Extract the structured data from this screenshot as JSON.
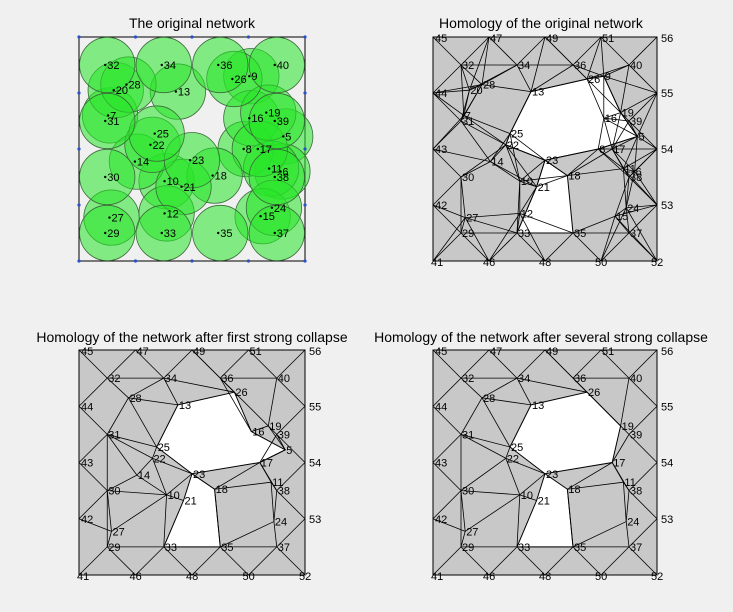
{
  "panels": [
    {
      "id": "p1",
      "title": "The original network"
    },
    {
      "id": "p2",
      "title": "Homology of the original network"
    },
    {
      "id": "p3",
      "title": "Homology of the network after first strong collapse"
    },
    {
      "id": "p4",
      "title": "Homology of the network after several strong collapse"
    }
  ],
  "colors": {
    "disk": "#33e633",
    "face": "#c8c8c8",
    "hole": "#ffffff",
    "background": "#f0f0f0"
  },
  "nodes": [
    {
      "id": "5",
      "x": 7.3,
      "y": 4.45
    },
    {
      "id": "6",
      "x": 7.2,
      "y": 3.2
    },
    {
      "id": "7",
      "x": 1.1,
      "y": 5.2
    },
    {
      "id": "8",
      "x": 5.9,
      "y": 4.0
    },
    {
      "id": "9",
      "x": 6.1,
      "y": 6.6
    },
    {
      "id": "10",
      "x": 3.1,
      "y": 2.85
    },
    {
      "id": "11",
      "x": 6.8,
      "y": 3.3
    },
    {
      "id": "12",
      "x": 3.1,
      "y": 1.7
    },
    {
      "id": "13",
      "x": 3.5,
      "y": 6.05
    },
    {
      "id": "14",
      "x": 2.05,
      "y": 3.55
    },
    {
      "id": "15",
      "x": 6.5,
      "y": 1.6
    },
    {
      "id": "16",
      "x": 6.1,
      "y": 5.1
    },
    {
      "id": "17",
      "x": 6.4,
      "y": 4.0
    },
    {
      "id": "18",
      "x": 4.8,
      "y": 3.05
    },
    {
      "id": "19",
      "x": 6.7,
      "y": 5.3
    },
    {
      "id": "20",
      "x": 1.3,
      "y": 6.1
    },
    {
      "id": "21",
      "x": 3.7,
      "y": 2.65
    },
    {
      "id": "22",
      "x": 2.6,
      "y": 4.15
    },
    {
      "id": "23",
      "x": 4.0,
      "y": 3.6
    },
    {
      "id": "24",
      "x": 6.9,
      "y": 1.9
    },
    {
      "id": "25",
      "x": 2.75,
      "y": 4.55
    },
    {
      "id": "26",
      "x": 5.5,
      "y": 6.5
    },
    {
      "id": "27",
      "x": 1.15,
      "y": 1.55
    },
    {
      "id": "28",
      "x": 1.75,
      "y": 6.3
    },
    {
      "id": "29",
      "x": 1.0,
      "y": 1.0
    },
    {
      "id": "30",
      "x": 1.0,
      "y": 3.0
    },
    {
      "id": "31",
      "x": 1.0,
      "y": 5.0
    },
    {
      "id": "32",
      "x": 1.0,
      "y": 7.0
    },
    {
      "id": "33",
      "x": 3.0,
      "y": 1.0
    },
    {
      "id": "34",
      "x": 3.0,
      "y": 7.0
    },
    {
      "id": "35",
      "x": 5.0,
      "y": 1.0
    },
    {
      "id": "36",
      "x": 5.0,
      "y": 7.0
    },
    {
      "id": "37",
      "x": 7.0,
      "y": 1.0
    },
    {
      "id": "38",
      "x": 7.0,
      "y": 3.0
    },
    {
      "id": "39",
      "x": 7.0,
      "y": 5.0
    },
    {
      "id": "40",
      "x": 7.0,
      "y": 7.0
    },
    {
      "id": "41",
      "x": 0.0,
      "y": 0.0
    },
    {
      "id": "42",
      "x": 0.0,
      "y": 2.0
    },
    {
      "id": "43",
      "x": 0.0,
      "y": 4.0
    },
    {
      "id": "44",
      "x": 0.0,
      "y": 6.0
    },
    {
      "id": "45",
      "x": 0.0,
      "y": 8.0
    },
    {
      "id": "46",
      "x": 2.0,
      "y": 0.0
    },
    {
      "id": "47",
      "x": 2.0,
      "y": 8.0
    },
    {
      "id": "48",
      "x": 4.0,
      "y": 0.0
    },
    {
      "id": "49",
      "x": 4.0,
      "y": 8.0
    },
    {
      "id": "50",
      "x": 6.0,
      "y": 0.0
    },
    {
      "id": "51",
      "x": 6.0,
      "y": 8.0
    },
    {
      "id": "52",
      "x": 8.0,
      "y": 0.0
    },
    {
      "id": "53",
      "x": 8.0,
      "y": 2.0
    },
    {
      "id": "54",
      "x": 8.0,
      "y": 4.0
    },
    {
      "id": "55",
      "x": 8.0,
      "y": 6.0
    },
    {
      "id": "56",
      "x": 8.0,
      "y": 8.0
    }
  ],
  "grid_sides": {
    "top": [
      "45",
      "47",
      "49",
      "51",
      "56"
    ],
    "right": [
      "56",
      "55",
      "54",
      "53",
      "52"
    ],
    "bottom": [
      "41",
      "46",
      "48",
      "50",
      "52"
    ],
    "left": [
      "45",
      "44",
      "43",
      "42",
      "41"
    ]
  },
  "panel_labels": {
    "p2": [
      "5",
      "6",
      "7",
      "8",
      "9",
      "10",
      "11",
      "12",
      "13",
      "14",
      "15",
      "16",
      "17",
      "18",
      "19",
      "20",
      "21",
      "22",
      "23",
      "24",
      "25",
      "26",
      "27",
      "28",
      "29",
      "30",
      "31",
      "32",
      "33",
      "34",
      "35",
      "36",
      "37",
      "38",
      "39",
      "40",
      "41",
      "42",
      "43",
      "44",
      "45",
      "46",
      "47",
      "48",
      "49",
      "50",
      "51",
      "52",
      "53",
      "54",
      "55",
      "56"
    ],
    "p3": [
      "5",
      "10",
      "11",
      "13",
      "14",
      "16",
      "17",
      "18",
      "19",
      "21",
      "22",
      "23",
      "24",
      "25",
      "26",
      "27",
      "28",
      "29",
      "30",
      "31",
      "32",
      "33",
      "34",
      "35",
      "36",
      "37",
      "38",
      "39",
      "40",
      "41",
      "42",
      "43",
      "44",
      "45",
      "46",
      "47",
      "48",
      "49",
      "50",
      "51",
      "52",
      "53",
      "54",
      "55",
      "56"
    ],
    "p4": [
      "10",
      "11",
      "13",
      "17",
      "18",
      "19",
      "21",
      "22",
      "23",
      "24",
      "25",
      "26",
      "27",
      "28",
      "29",
      "30",
      "31",
      "32",
      "33",
      "34",
      "35",
      "36",
      "37",
      "38",
      "39",
      "40",
      "41",
      "42",
      "43",
      "44",
      "45",
      "46",
      "47",
      "48",
      "49",
      "50",
      "51",
      "52",
      "53",
      "54",
      "55",
      "56"
    ]
  },
  "holes": {
    "p2": [
      [
        "13",
        "26",
        "9",
        "19",
        "5",
        "8",
        "23",
        "22",
        "25"
      ],
      [
        "23",
        "18",
        "35",
        "33",
        "21"
      ]
    ],
    "p3": [
      [
        "13",
        "26",
        "16",
        "5",
        "17",
        "23",
        "25"
      ],
      [
        "23",
        "18",
        "35",
        "33",
        "21"
      ]
    ],
    "p4": [
      [
        "13",
        "26",
        "19",
        "17",
        "23",
        "25"
      ],
      [
        "23",
        "18",
        "35",
        "33",
        "21"
      ]
    ]
  },
  "edges_p3": [
    [
      "45",
      "32"
    ],
    [
      "47",
      "32"
    ],
    [
      "47",
      "34"
    ],
    [
      "49",
      "34"
    ],
    [
      "49",
      "26"
    ],
    [
      "49",
      "36"
    ],
    [
      "51",
      "36"
    ],
    [
      "51",
      "40"
    ],
    [
      "56",
      "40"
    ],
    [
      "44",
      "32"
    ],
    [
      "44",
      "31"
    ],
    [
      "43",
      "31"
    ],
    [
      "43",
      "30"
    ],
    [
      "42",
      "30"
    ],
    [
      "42",
      "27"
    ],
    [
      "41",
      "29"
    ],
    [
      "46",
      "29"
    ],
    [
      "46",
      "33"
    ],
    [
      "48",
      "33"
    ],
    [
      "48",
      "35"
    ],
    [
      "50",
      "35"
    ],
    [
      "50",
      "37"
    ],
    [
      "52",
      "37"
    ],
    [
      "55",
      "40"
    ],
    [
      "55",
      "39"
    ],
    [
      "54",
      "39"
    ],
    [
      "54",
      "38"
    ],
    [
      "53",
      "38"
    ],
    [
      "53",
      "37"
    ],
    [
      "32",
      "34"
    ],
    [
      "32",
      "28"
    ],
    [
      "34",
      "28"
    ],
    [
      "34",
      "13"
    ],
    [
      "28",
      "13"
    ],
    [
      "28",
      "31"
    ],
    [
      "31",
      "25"
    ],
    [
      "28",
      "25"
    ],
    [
      "34",
      "26"
    ],
    [
      "26",
      "36"
    ],
    [
      "36",
      "40"
    ],
    [
      "36",
      "19"
    ],
    [
      "36",
      "16"
    ],
    [
      "40",
      "19"
    ],
    [
      "19",
      "39"
    ],
    [
      "19",
      "5"
    ],
    [
      "19",
      "16"
    ],
    [
      "5",
      "39"
    ],
    [
      "5",
      "17"
    ],
    [
      "39",
      "17"
    ],
    [
      "17",
      "38"
    ],
    [
      "17",
      "11"
    ],
    [
      "11",
      "38"
    ],
    [
      "38",
      "24"
    ],
    [
      "11",
      "24"
    ],
    [
      "24",
      "37"
    ],
    [
      "24",
      "35"
    ],
    [
      "11",
      "18"
    ],
    [
      "17",
      "18"
    ],
    [
      "23",
      "18"
    ],
    [
      "18",
      "35"
    ],
    [
      "31",
      "22"
    ],
    [
      "31",
      "14"
    ],
    [
      "31",
      "30"
    ],
    [
      "22",
      "14"
    ],
    [
      "22",
      "25"
    ],
    [
      "14",
      "30"
    ],
    [
      "14",
      "10"
    ],
    [
      "22",
      "10"
    ],
    [
      "30",
      "10"
    ],
    [
      "30",
      "27"
    ],
    [
      "30",
      "29"
    ],
    [
      "27",
      "29"
    ],
    [
      "27",
      "10"
    ],
    [
      "29",
      "33"
    ],
    [
      "10",
      "33"
    ],
    [
      "10",
      "21"
    ],
    [
      "10",
      "23"
    ],
    [
      "22",
      "23"
    ],
    [
      "33",
      "35"
    ],
    [
      "35",
      "37"
    ],
    [
      "45",
      "44"
    ],
    [
      "44",
      "43"
    ],
    [
      "43",
      "42"
    ],
    [
      "42",
      "41"
    ],
    [
      "47",
      "45"
    ],
    [
      "49",
      "47"
    ],
    [
      "51",
      "49"
    ],
    [
      "56",
      "51"
    ],
    [
      "55",
      "56"
    ],
    [
      "54",
      "55"
    ],
    [
      "53",
      "54"
    ],
    [
      "52",
      "53"
    ]
  ],
  "edges_p4": [
    [
      "45",
      "32"
    ],
    [
      "47",
      "32"
    ],
    [
      "47",
      "34"
    ],
    [
      "49",
      "34"
    ],
    [
      "49",
      "26"
    ],
    [
      "49",
      "36"
    ],
    [
      "51",
      "36"
    ],
    [
      "51",
      "40"
    ],
    [
      "56",
      "40"
    ],
    [
      "44",
      "32"
    ],
    [
      "44",
      "31"
    ],
    [
      "43",
      "31"
    ],
    [
      "43",
      "30"
    ],
    [
      "42",
      "30"
    ],
    [
      "42",
      "27"
    ],
    [
      "41",
      "29"
    ],
    [
      "46",
      "29"
    ],
    [
      "46",
      "33"
    ],
    [
      "48",
      "33"
    ],
    [
      "48",
      "35"
    ],
    [
      "50",
      "35"
    ],
    [
      "50",
      "37"
    ],
    [
      "52",
      "37"
    ],
    [
      "55",
      "40"
    ],
    [
      "55",
      "39"
    ],
    [
      "54",
      "39"
    ],
    [
      "54",
      "38"
    ],
    [
      "53",
      "38"
    ],
    [
      "53",
      "37"
    ],
    [
      "32",
      "34"
    ],
    [
      "32",
      "28"
    ],
    [
      "34",
      "28"
    ],
    [
      "34",
      "13"
    ],
    [
      "28",
      "13"
    ],
    [
      "28",
      "31"
    ],
    [
      "31",
      "25"
    ],
    [
      "28",
      "25"
    ],
    [
      "34",
      "26"
    ],
    [
      "26",
      "36"
    ],
    [
      "36",
      "40"
    ],
    [
      "36",
      "19"
    ],
    [
      "40",
      "19"
    ],
    [
      "19",
      "39"
    ],
    [
      "39",
      "17"
    ],
    [
      "17",
      "38"
    ],
    [
      "17",
      "11"
    ],
    [
      "11",
      "38"
    ],
    [
      "38",
      "24"
    ],
    [
      "11",
      "24"
    ],
    [
      "24",
      "37"
    ],
    [
      "24",
      "35"
    ],
    [
      "11",
      "18"
    ],
    [
      "17",
      "18"
    ],
    [
      "18",
      "35"
    ],
    [
      "31",
      "22"
    ],
    [
      "31",
      "30"
    ],
    [
      "22",
      "25"
    ],
    [
      "22",
      "30"
    ],
    [
      "22",
      "10"
    ],
    [
      "30",
      "10"
    ],
    [
      "30",
      "27"
    ],
    [
      "30",
      "29"
    ],
    [
      "27",
      "29"
    ],
    [
      "27",
      "10"
    ],
    [
      "29",
      "33"
    ],
    [
      "10",
      "33"
    ],
    [
      "10",
      "21"
    ],
    [
      "10",
      "23"
    ],
    [
      "22",
      "23"
    ],
    [
      "33",
      "35"
    ],
    [
      "35",
      "37"
    ],
    [
      "45",
      "44"
    ],
    [
      "44",
      "43"
    ],
    [
      "43",
      "42"
    ],
    [
      "42",
      "41"
    ],
    [
      "47",
      "45"
    ],
    [
      "49",
      "47"
    ],
    [
      "51",
      "49"
    ],
    [
      "56",
      "51"
    ],
    [
      "55",
      "56"
    ],
    [
      "54",
      "55"
    ],
    [
      "53",
      "54"
    ],
    [
      "52",
      "53"
    ]
  ],
  "dense_neighbors": 6
}
